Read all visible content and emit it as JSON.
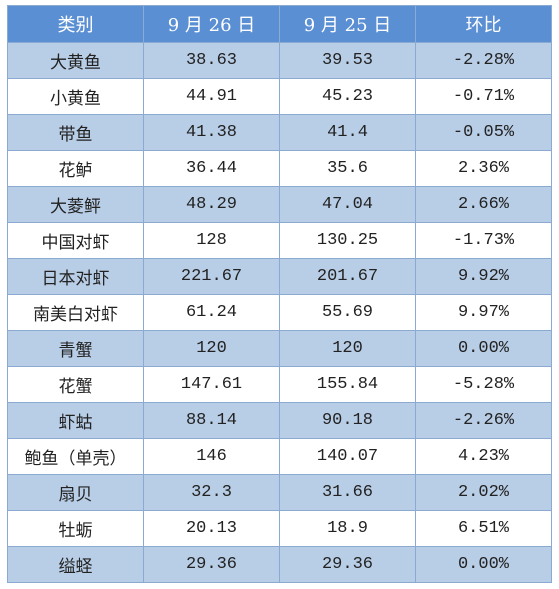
{
  "table": {
    "header": [
      "类别",
      "9 月 26 日",
      "9 月 25 日",
      "环比"
    ],
    "rows": [
      [
        "大黄鱼",
        "38.63",
        "39.53",
        "-2.28%"
      ],
      [
        "小黄鱼",
        "44.91",
        "45.23",
        "-0.71%"
      ],
      [
        "带鱼",
        "41.38",
        "41.4",
        "-0.05%"
      ],
      [
        "花鲈",
        "36.44",
        "35.6",
        "2.36%"
      ],
      [
        "大菱鲆",
        "48.29",
        "47.04",
        "2.66%"
      ],
      [
        "中国对虾",
        "128",
        "130.25",
        "-1.73%"
      ],
      [
        "日本对虾",
        "221.67",
        "201.67",
        "9.92%"
      ],
      [
        "南美白对虾",
        "61.24",
        "55.69",
        "9.97%"
      ],
      [
        "青蟹",
        "120",
        "120",
        "0.00%"
      ],
      [
        "花蟹",
        "147.61",
        "155.84",
        "-5.28%"
      ],
      [
        "虾蛄",
        "88.14",
        "90.18",
        "-2.26%"
      ],
      [
        "鲍鱼（单壳）",
        "146",
        "140.07",
        "4.23%"
      ],
      [
        "扇贝",
        "32.3",
        "31.66",
        "2.02%"
      ],
      [
        "牡蛎",
        "20.13",
        "18.9",
        "6.51%"
      ],
      [
        "缢蛏",
        "29.36",
        "29.36",
        "0.00%"
      ]
    ]
  }
}
